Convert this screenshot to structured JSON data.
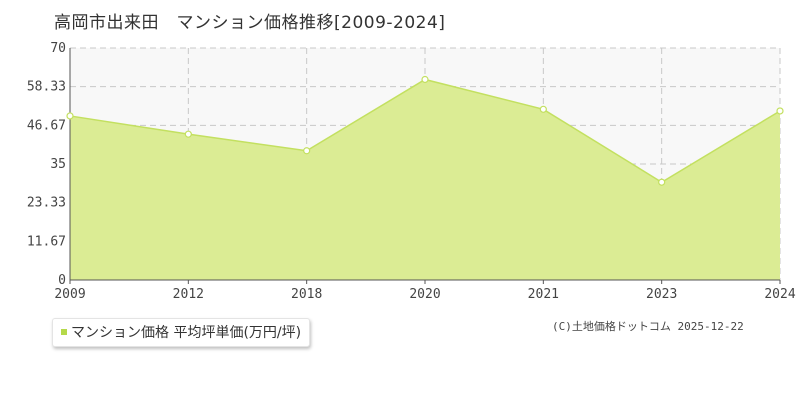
{
  "title": "高岡市出来田　マンション価格推移[2009-2024]",
  "legend": {
    "label": "マンション価格 平均坪単価(万円/坪)"
  },
  "copyright": "(C)土地価格ドットコム 2025-12-22",
  "colors": {
    "area_fill": "#dbec94",
    "line": "#c3e060",
    "point_fill": "#ffffff",
    "grid": "#c8c8c8",
    "plot_bg": "#f8f8f8",
    "legend_marker": "#b5d94a"
  },
  "chart_data": {
    "type": "area",
    "title": "高岡市出来田　マンション価格推移[2009-2024]",
    "xlabel": "",
    "ylabel": "",
    "categories": [
      "2009",
      "2012",
      "2018",
      "2020",
      "2021",
      "2023",
      "2024"
    ],
    "series": [
      {
        "name": "マンション価格 平均坪単価(万円/坪)",
        "values": [
          49.5,
          44,
          39,
          60.5,
          51.5,
          29.5,
          51
        ]
      }
    ],
    "yticks": [
      "0",
      "11.67",
      "23.33",
      "35",
      "46.67",
      "58.33",
      "70"
    ],
    "ylim": [
      0,
      70
    ],
    "grid": true,
    "legend_position": "bottom-left"
  }
}
